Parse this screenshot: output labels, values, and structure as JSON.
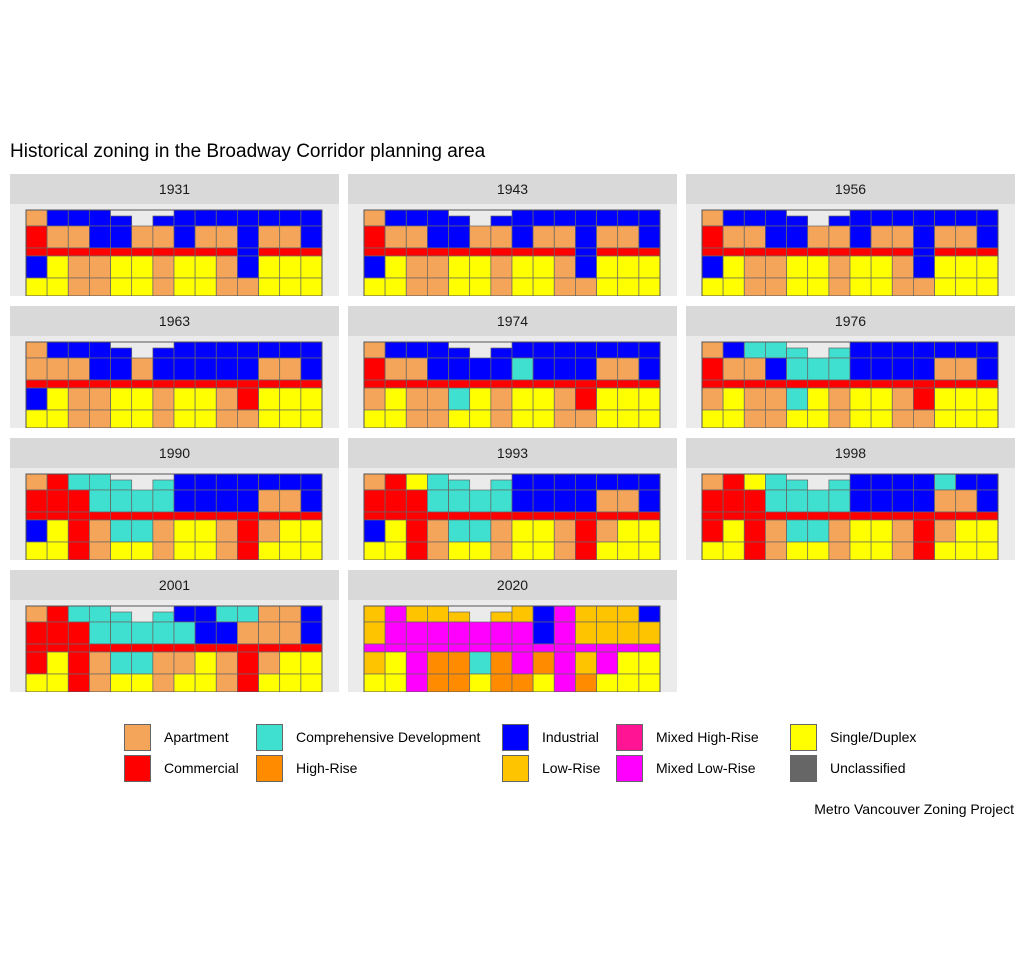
{
  "title": "Historical zoning in the Broadway Corridor planning area",
  "caption": "Metro Vancouver Zoning Project",
  "legend": [
    {
      "code": "A",
      "label": "Apartment",
      "color": "#F4A55A"
    },
    {
      "code": "C",
      "label": "Commercial",
      "color": "#FF0000"
    },
    {
      "code": "D",
      "label": "Comprehensive Development",
      "color": "#40E0D0"
    },
    {
      "code": "H",
      "label": "High-Rise",
      "color": "#FF8C00"
    },
    {
      "code": "I",
      "label": "Industrial",
      "color": "#0000FF"
    },
    {
      "code": "L",
      "label": "Low-Rise",
      "color": "#FFC400"
    },
    {
      "code": "M",
      "label": "Mixed High-Rise",
      "color": "#FF1493"
    },
    {
      "code": "X",
      "label": "Mixed Low-Rise",
      "color": "#FF00FF"
    },
    {
      "code": "S",
      "label": "Single/Duplex",
      "color": "#FFFF00"
    },
    {
      "code": "U",
      "label": "Unclassified",
      "color": "#666666"
    }
  ],
  "panels": [
    {
      "year": "1931",
      "zones": [
        "AIIII.IIIIIIII",
        "CAAIIAAIAAIAAI",
        "CCCCCCCCCCICCC",
        "ISAASSASSAISSS",
        "SSAASSASSAASSS"
      ]
    },
    {
      "year": "1943",
      "zones": [
        "AIIII.IIIIIIII",
        "CAAIIAAIAAIAAI",
        "CCCCCCCCCCICCC",
        "ISAASSASSAISSS",
        "SSAASSASSAASSS"
      ]
    },
    {
      "year": "1956",
      "zones": [
        "AIIII.IIIIIIII",
        "CAAIIAAIAAIAAI",
        "CCCCCCCCCCICCC",
        "ISAASSASSAISSS",
        "SSAASSASSAASSS"
      ]
    },
    {
      "year": "1963",
      "zones": [
        "AIIII.IIIIIIII",
        "AAAIIAIIIIIAAI",
        "CCCCCCCCCCCCCC",
        "ISAASSASSACSSS",
        "SSAASSASSAASSS"
      ]
    },
    {
      "year": "1974",
      "zones": [
        "AIIII.IIIIIIII",
        "CAAIIIIDIIIAAI",
        "CCCCCCCCCCCCCC",
        "ASAADSASSACSSS",
        "SSAASSASSAASSS"
      ]
    },
    {
      "year": "1976",
      "zones": [
        "AIDDD.DIIIIIII",
        "CAAIDDDIIIIAAI",
        "CCCCCCCCCCCCCC",
        "ASAADSASSACSSS",
        "SSAASSASSAASSS"
      ]
    },
    {
      "year": "1990",
      "zones": [
        "ACDDD.DIIIIIII",
        "CCCDDDDIIIIAAI",
        "CCCCCCCCCCCCCC",
        "ISCADDASSACASS",
        "SSCASSASSACSSS"
      ]
    },
    {
      "year": "1993",
      "zones": [
        "ACSDD.DIIIIIII",
        "CCCDDDDIIIIAAI",
        "CCCCCCCCCCCCCC",
        "ISCADDASSACASS",
        "SSCASSASSACSSS"
      ]
    },
    {
      "year": "1998",
      "zones": [
        "ACSDD.DIIIIDII",
        "CCCDDDDIIIIAAI",
        "CCCCCCCCCCCCCC",
        "CSCADDASSACASS",
        "SSCASSASSACSSS"
      ]
    },
    {
      "year": "2001",
      "zones": [
        "ACDDD.DIIDDAAI",
        "CCCDDDDDIIAAAI",
        "CCCCCCCCCCCCCC",
        "CSCADDAASACASS",
        "SSCASSASSACSSS"
      ]
    },
    {
      "year": "2020",
      "zones": [
        "LXLLL.LLIXLLLI",
        "LXXXXXXXIXLLLL",
        "XXXXXXXXXXXXXX",
        "LSXHHDHXHXLXSS",
        "SSXHHSHHSXHSSS"
      ]
    }
  ]
}
